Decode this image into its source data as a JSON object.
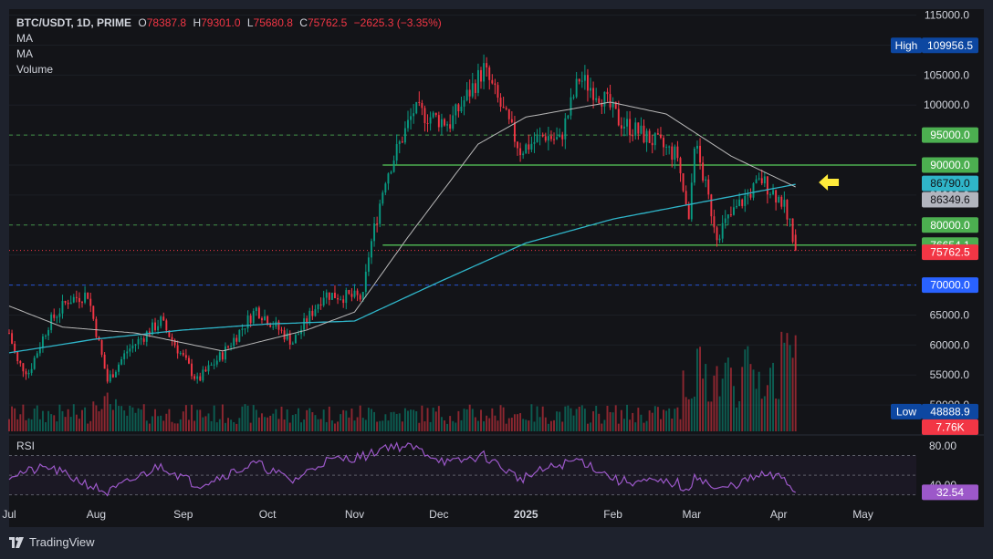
{
  "header": {
    "symbol": "BTC/USDT, 1D, PRIME",
    "o_label": "O",
    "o_value": "78387.8",
    "h_label": "H",
    "h_value": "79301.0",
    "l_label": "L",
    "l_value": "75680.8",
    "c_label": "C",
    "c_value": "75762.5",
    "change": "−2625.3 (−3.35%)",
    "indicators": [
      "MA",
      "MA",
      "Volume"
    ]
  },
  "footer": {
    "brand": "TradingView"
  },
  "colors": {
    "bg": "#131418",
    "frame": "#1e222d",
    "up": "#089981",
    "down": "#f23645",
    "ma_fast": "#c7c7c7",
    "ma_slow": "#2fb5c9",
    "level_green": "#4caf50",
    "rsi_line": "#9c58c9",
    "arrow": "#ffeb3b"
  },
  "chart_data": [
    {
      "type": "candlestick",
      "title": "BTC/USDT, 1D, PRIME",
      "x_ticks": [
        "Jul",
        "Aug",
        "Sep",
        "Oct",
        "Nov",
        "Dec",
        "2025",
        "Feb",
        "Mar",
        "Apr",
        "May"
      ],
      "x_tick_dates": [
        "2024-07-01",
        "2024-08-01",
        "2024-09-01",
        "2024-10-01",
        "2024-11-01",
        "2024-12-01",
        "2025-01-01",
        "2025-02-01",
        "2025-03-01",
        "2025-04-01",
        "2025-05-01"
      ],
      "x_range": [
        "2024-07-01",
        "2025-05-20"
      ],
      "y_range": [
        45000,
        116000
      ],
      "y_ticks": [
        115000,
        110000,
        105000,
        100000,
        95000,
        90000,
        85000,
        80000,
        75000,
        70000,
        65000,
        60000,
        55000,
        50000
      ],
      "y_tick_labels": [
        "115000.0",
        "110000.0",
        "105000.0",
        "100000.0",
        "95000.0",
        "90000.0",
        "85000.0",
        "80000.0",
        "75000.0",
        "70000.0",
        "65000.0",
        "60000.0",
        "55000.0",
        "50000.0"
      ],
      "price_keypoints": [
        [
          "2024-07-01",
          62000
        ],
        [
          "2024-07-04",
          57000
        ],
        [
          "2024-07-08",
          55500
        ],
        [
          "2024-07-15",
          63500
        ],
        [
          "2024-07-22",
          67500
        ],
        [
          "2024-07-29",
          68500
        ],
        [
          "2024-08-05",
          54000
        ],
        [
          "2024-08-12",
          59000
        ],
        [
          "2024-08-24",
          64000
        ],
        [
          "2024-09-06",
          54000
        ],
        [
          "2024-09-15",
          58500
        ],
        [
          "2024-09-27",
          66000
        ],
        [
          "2024-10-10",
          60500
        ],
        [
          "2024-10-21",
          68500
        ],
        [
          "2024-11-04",
          67800
        ],
        [
          "2024-11-06",
          75000
        ],
        [
          "2024-11-12",
          88000
        ],
        [
          "2024-11-22",
          99000
        ],
        [
          "2024-12-05",
          97000
        ],
        [
          "2024-12-17",
          106000
        ],
        [
          "2024-12-30",
          92500
        ],
        [
          "2025-01-08",
          95000
        ],
        [
          "2025-01-13",
          94000
        ],
        [
          "2025-01-20",
          104500
        ],
        [
          "2025-01-28",
          101500
        ],
        [
          "2025-02-03",
          97500
        ],
        [
          "2025-02-24",
          91500
        ],
        [
          "2025-02-28",
          80000
        ],
        [
          "2025-03-02",
          94000
        ],
        [
          "2025-03-10",
          78500
        ],
        [
          "2025-03-19",
          84000
        ],
        [
          "2025-03-26",
          87500
        ],
        [
          "2025-04-03",
          83500
        ],
        [
          "2025-04-06",
          78400
        ],
        [
          "2025-04-07",
          75762.5
        ]
      ],
      "ma_slow_keypoints": [
        [
          "2024-07-01",
          58700
        ],
        [
          "2024-08-01",
          61000
        ],
        [
          "2024-09-01",
          62500
        ],
        [
          "2024-10-01",
          63500
        ],
        [
          "2024-11-01",
          64000
        ],
        [
          "2024-12-01",
          70500
        ],
        [
          "2025-01-01",
          77000
        ],
        [
          "2025-02-01",
          81000
        ],
        [
          "2025-03-01",
          83500
        ],
        [
          "2025-04-07",
          86790
        ]
      ],
      "ma_fast_keypoints": [
        [
          "2024-07-01",
          66500
        ],
        [
          "2024-07-20",
          63000
        ],
        [
          "2024-08-15",
          62000
        ],
        [
          "2024-09-15",
          59000
        ],
        [
          "2024-10-15",
          62500
        ],
        [
          "2024-11-01",
          65500
        ],
        [
          "2024-11-20",
          78000
        ],
        [
          "2024-12-15",
          93500
        ],
        [
          "2025-01-01",
          98000
        ],
        [
          "2025-01-31",
          100500
        ],
        [
          "2025-02-20",
          98500
        ],
        [
          "2025-03-15",
          91500
        ],
        [
          "2025-04-07",
          86349.6
        ]
      ],
      "levels": [
        {
          "value": 95000,
          "label": "95000.0",
          "style": "dashed",
          "color": "#4caf50",
          "label_bg": "#4caf50"
        },
        {
          "value": 90000,
          "label": "90000.0",
          "style": "solid",
          "color": "#4caf50",
          "label_bg": "#4caf50"
        },
        {
          "value": 80000,
          "label": "80000.0",
          "style": "dashed",
          "color": "#4caf50",
          "label_bg": "#4caf50"
        },
        {
          "value": 76654.1,
          "label": "76654.1",
          "style": "solid",
          "color": "#4caf50",
          "label_bg": "#4caf50"
        },
        {
          "value": 70000,
          "label": "70000.0",
          "style": "dashed",
          "color": "#2962ff",
          "label_bg": "#2962ff"
        }
      ],
      "level_lines_start": "2024-11-11",
      "price_labels": [
        {
          "value": 86790,
          "label": "86790.0",
          "bg": "#2fb5c9"
        },
        {
          "value": 86349.6,
          "label": "86349.6",
          "bg": "#b2b5be"
        },
        {
          "value": 75762.5,
          "label": "75762.5",
          "bg": "#f23645"
        }
      ],
      "high": {
        "label": "High",
        "value": 109956.5,
        "text": "109956.5"
      },
      "low": {
        "label": "Low",
        "value": 48888.9,
        "text": "48888.9"
      },
      "volume_label": "7.76K",
      "arrow": {
        "date": "2025-04-12",
        "value": 86800
      }
    },
    {
      "type": "line",
      "title": "RSI",
      "y_range": [
        25,
        90
      ],
      "y_ticks": [
        80,
        40
      ],
      "y_tick_labels": [
        "80.00",
        "40.00"
      ],
      "bands": [
        70,
        50,
        30
      ],
      "rsi_keypoints": [
        [
          "2024-07-01",
          50
        ],
        [
          "2024-07-15",
          58
        ],
        [
          "2024-08-05",
          32
        ],
        [
          "2024-08-24",
          60
        ],
        [
          "2024-09-06",
          40
        ],
        [
          "2024-09-27",
          62
        ],
        [
          "2024-10-10",
          44
        ],
        [
          "2024-10-21",
          64
        ],
        [
          "2024-11-06",
          70
        ],
        [
          "2024-11-12",
          80
        ],
        [
          "2024-11-22",
          78
        ],
        [
          "2024-12-05",
          62
        ],
        [
          "2024-12-17",
          70
        ],
        [
          "2024-12-30",
          46
        ],
        [
          "2025-01-08",
          56
        ],
        [
          "2025-01-20",
          66
        ],
        [
          "2025-02-03",
          44
        ],
        [
          "2025-02-24",
          42
        ],
        [
          "2025-02-28",
          30
        ],
        [
          "2025-03-02",
          52
        ],
        [
          "2025-03-10",
          34
        ],
        [
          "2025-03-26",
          50
        ],
        [
          "2025-04-03",
          47
        ],
        [
          "2025-04-07",
          32.54
        ]
      ],
      "value_label": "32.54"
    }
  ]
}
